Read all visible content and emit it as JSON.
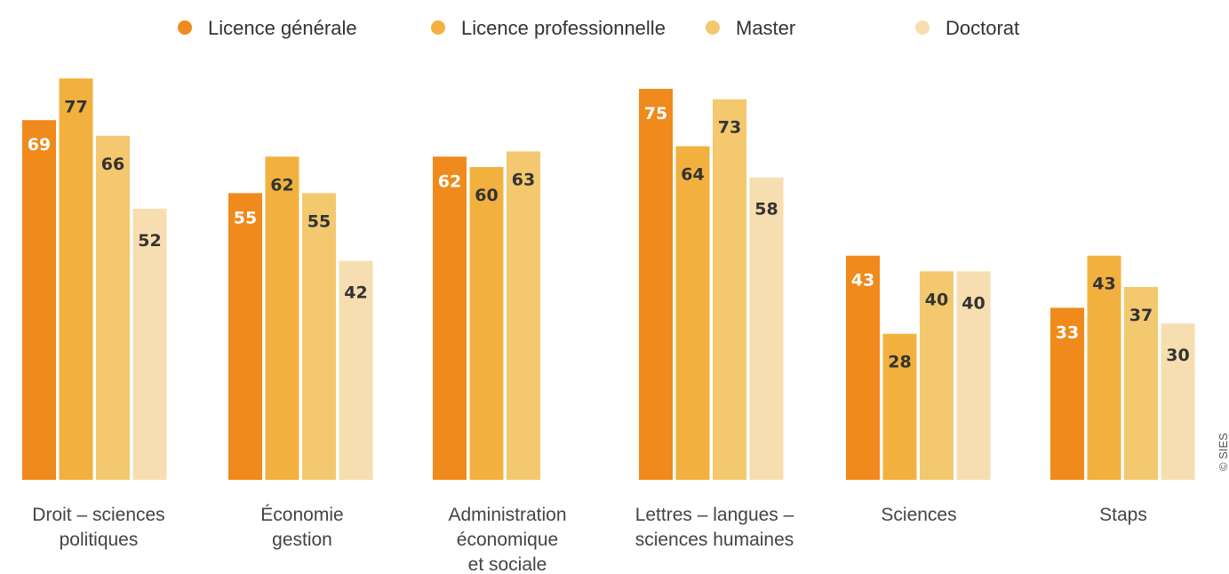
{
  "chart_data": {
    "type": "bar",
    "categories": [
      [
        "Droit – sciences",
        "politiques"
      ],
      [
        "Économie",
        "gestion"
      ],
      [
        "Administration",
        "économique",
        "et sociale"
      ],
      [
        "Lettres – langues –",
        "sciences humaines"
      ],
      [
        "Sciences"
      ],
      [
        "Staps"
      ]
    ],
    "series": [
      {
        "name": "Licence générale",
        "color": "#f08a1c",
        "values": [
          69,
          55,
          62,
          75,
          43,
          33
        ]
      },
      {
        "name": "Licence professionnelle",
        "color": "#f2b13e",
        "values": [
          77,
          62,
          60,
          64,
          28,
          43
        ]
      },
      {
        "name": "Master",
        "color": "#f3c86f",
        "values": [
          66,
          55,
          63,
          73,
          40,
          37
        ]
      },
      {
        "name": "Doctorat",
        "color": "#f7deb0",
        "values": [
          52,
          42,
          null,
          58,
          40,
          30
        ]
      }
    ],
    "label_colors": {
      "light": "#ffffff",
      "dark": "#333333"
    },
    "ylim": [
      0,
      80
    ],
    "grid": false,
    "legend_position": "top-center"
  },
  "credit": "© SIES"
}
